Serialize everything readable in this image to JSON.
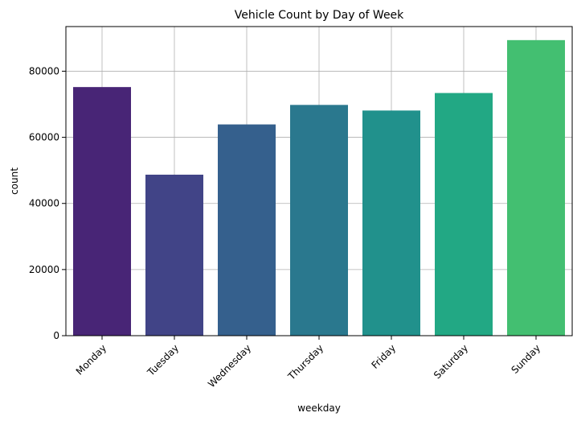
{
  "chart_data": {
    "type": "bar",
    "title": "Vehicle Count by Day of Week",
    "xlabel": "weekday",
    "ylabel": "count",
    "categories": [
      "Monday",
      "Tuesday",
      "Wednesday",
      "Thursday",
      "Friday",
      "Saturday",
      "Sunday"
    ],
    "values": [
      75200,
      48700,
      63900,
      69800,
      68100,
      73400,
      89400
    ],
    "ylim": [
      0,
      93500
    ],
    "yticks": [
      0,
      20000,
      40000,
      60000,
      80000
    ],
    "ytick_labels": [
      "0",
      "20000",
      "40000",
      "60000",
      "80000"
    ],
    "grid": true,
    "legend": "none",
    "colors": [
      "#482576",
      "#414487",
      "#35608d",
      "#2a788e",
      "#21918c",
      "#22a884",
      "#43bf71"
    ],
    "colors_note": ""
  }
}
